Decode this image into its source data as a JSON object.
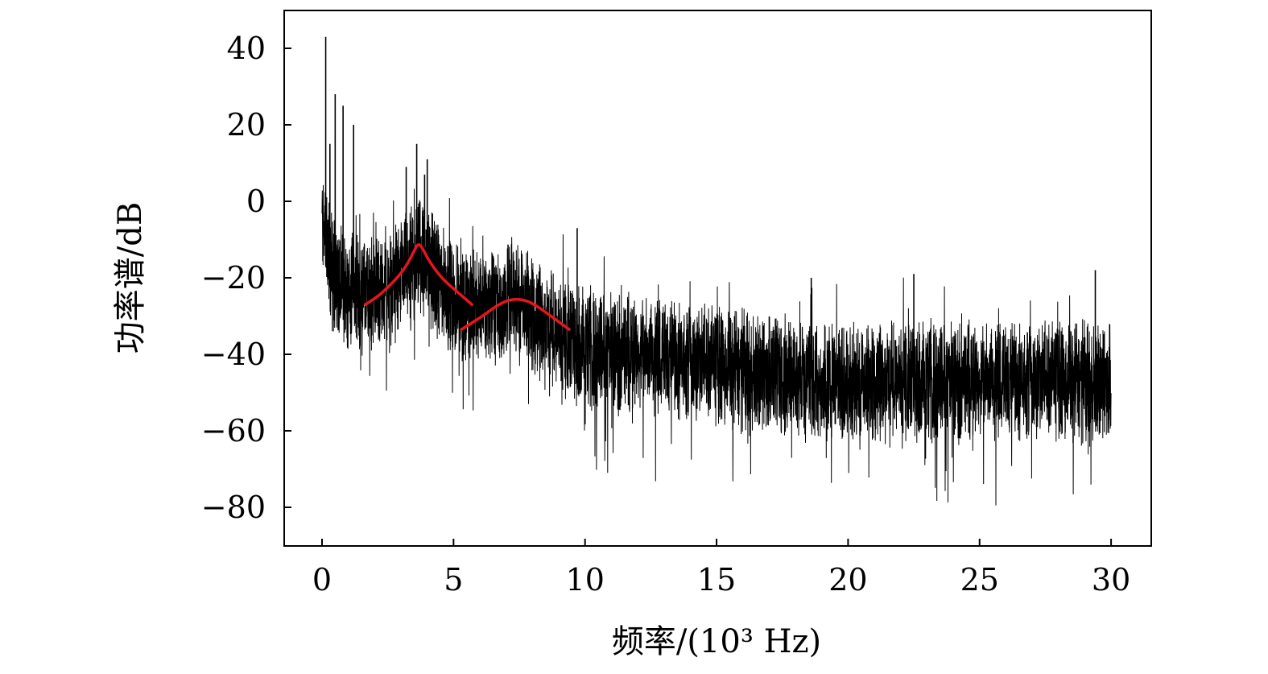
{
  "chart_data": {
    "type": "line",
    "title": "",
    "xlabel": "频率/(10³ Hz)",
    "ylabel": "功率谱/dB",
    "xlim": [
      -1.5,
      31.5
    ],
    "ylim": [
      -90,
      50
    ],
    "x_ticks": [
      0,
      5,
      10,
      15,
      20,
      25,
      30
    ],
    "x_tick_labels": [
      "0",
      "5",
      "10",
      "15",
      "20",
      "25",
      "30"
    ],
    "y_ticks": [
      40,
      20,
      0,
      -20,
      -40,
      -60,
      -80
    ],
    "y_tick_labels": [
      "40",
      "20",
      "0",
      "−20",
      "−40",
      "−60",
      "−80"
    ],
    "grid": false,
    "legend": "none",
    "series": [
      {
        "role": "spectrum",
        "color": "#000000",
        "x_range": [
          0,
          30
        ],
        "mean_envelope": {
          "x": [
            0,
            0.3,
            0.8,
            1.5,
            2.5,
            3.0,
            3.7,
            4.5,
            5.5,
            6.5,
            7.5,
            8.5,
            9.5,
            10.5,
            12,
            14,
            16,
            18,
            20,
            22,
            25,
            28,
            30
          ],
          "y": [
            -5,
            -17,
            -23,
            -25,
            -24,
            -20,
            -14,
            -22,
            -28,
            -27,
            -25,
            -33,
            -37,
            -39,
            -40,
            -42,
            -44,
            -46,
            -47,
            -47,
            -47,
            -47,
            -47
          ]
        },
        "spikes": {
          "x": [
            0.14,
            0.3,
            0.5,
            0.8,
            1.2,
            3.2,
            3.6,
            3.9,
            4.0,
            9.7,
            18.6,
            22.5,
            29.4
          ],
          "y": [
            43,
            15,
            28,
            25,
            20,
            9,
            15,
            7,
            11,
            -7,
            -20,
            -19,
            -18
          ]
        }
      },
      {
        "role": "formant-fit-1",
        "color": "#e8141e",
        "x": [
          1.65,
          2.2,
          2.8,
          3.2,
          3.5,
          3.65,
          3.8,
          4.1,
          4.6,
          5.2,
          5.7
        ],
        "y": [
          -27,
          -24.5,
          -20.5,
          -17,
          -13,
          -11,
          -12,
          -16,
          -20.5,
          -24,
          -27
        ]
      },
      {
        "role": "formant-fit-2",
        "color": "#e8141e",
        "x": [
          5.3,
          6.0,
          6.6,
          7.0,
          7.4,
          7.8,
          8.2,
          8.7,
          9.4
        ],
        "y": [
          -33.5,
          -30.5,
          -27.5,
          -26,
          -25.5,
          -26,
          -27.5,
          -30,
          -33.5
        ]
      }
    ]
  }
}
